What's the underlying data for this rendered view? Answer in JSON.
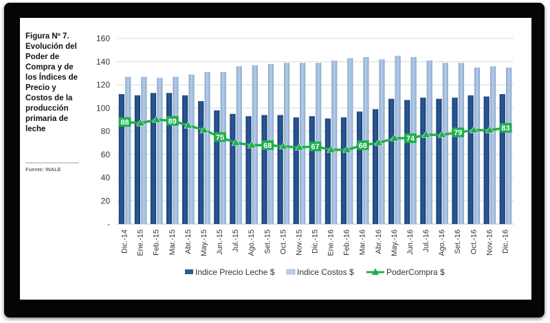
{
  "figure": {
    "caption": "Figura Nº 7. Evolución del Poder de Compra y de los Índices de Precio y Costos de la producción primaria de leche",
    "source": "Fuente: INALE"
  },
  "colors": {
    "precio": "#2a5a9a",
    "precio_dark": "#1b3f73",
    "costos": "#b7cde8",
    "costos_edge": "#8aa8cf",
    "poder": "#1fae4f",
    "poder_label_bg": "#1fae4f",
    "grid": "#d9d9d9",
    "axis_text": "#333333"
  },
  "chart_data": {
    "type": "bar",
    "categories": [
      "Dic.-14",
      "Ene.-15",
      "Feb.-15",
      "Mar.-15",
      "Abr.-15",
      "May.-15",
      "Jun.-15",
      "Jul.-15",
      "Ago.-15",
      "Set.-15",
      "Oct.-15",
      "Nov.-15",
      "Dic.-15",
      "Ene.-16",
      "Feb.-16",
      "Mar.-16",
      "Abr.-16",
      "May.-16",
      "Jun.-16",
      "Jul.-16",
      "Ago.-16",
      "Set.-16",
      "Oct.-16",
      "Nov.-16",
      "Dic.-16"
    ],
    "series": [
      {
        "name": "Indice Precio Leche $",
        "type": "bar",
        "values": [
          112,
          111,
          113,
          113,
          111,
          106,
          98,
          95,
          93,
          94,
          94,
          92,
          93,
          91,
          92,
          97,
          99,
          108,
          107,
          109,
          108,
          109,
          111,
          110,
          112
        ]
      },
      {
        "name": "Indice Costos $",
        "type": "bar",
        "values": [
          127,
          127,
          126,
          127,
          129,
          131,
          131,
          136,
          137,
          138,
          139,
          139,
          139,
          141,
          143,
          144,
          142,
          145,
          144,
          141,
          139,
          139,
          135,
          136,
          135
        ]
      },
      {
        "name": "PoderCompra $",
        "type": "line",
        "values": [
          88,
          87,
          90,
          89,
          85,
          81,
          75,
          70,
          68,
          68,
          67,
          66,
          67,
          64,
          64,
          68,
          70,
          74,
          74,
          77,
          77,
          79,
          81,
          81,
          83
        ]
      }
    ],
    "point_labels": [
      {
        "index": 0,
        "text": "88"
      },
      {
        "index": 3,
        "text": "89"
      },
      {
        "index": 6,
        "text": "75"
      },
      {
        "index": 9,
        "text": "68"
      },
      {
        "index": 12,
        "text": "67"
      },
      {
        "index": 15,
        "text": "68"
      },
      {
        "index": 18,
        "text": "74"
      },
      {
        "index": 21,
        "text": "79"
      },
      {
        "index": 24,
        "text": "83"
      }
    ],
    "ylim": [
      0,
      160
    ],
    "yticks": [
      "-",
      "20",
      "40",
      "60",
      "80",
      "100",
      "120",
      "140",
      "160"
    ],
    "grid": true,
    "legend_position": "bottom"
  }
}
